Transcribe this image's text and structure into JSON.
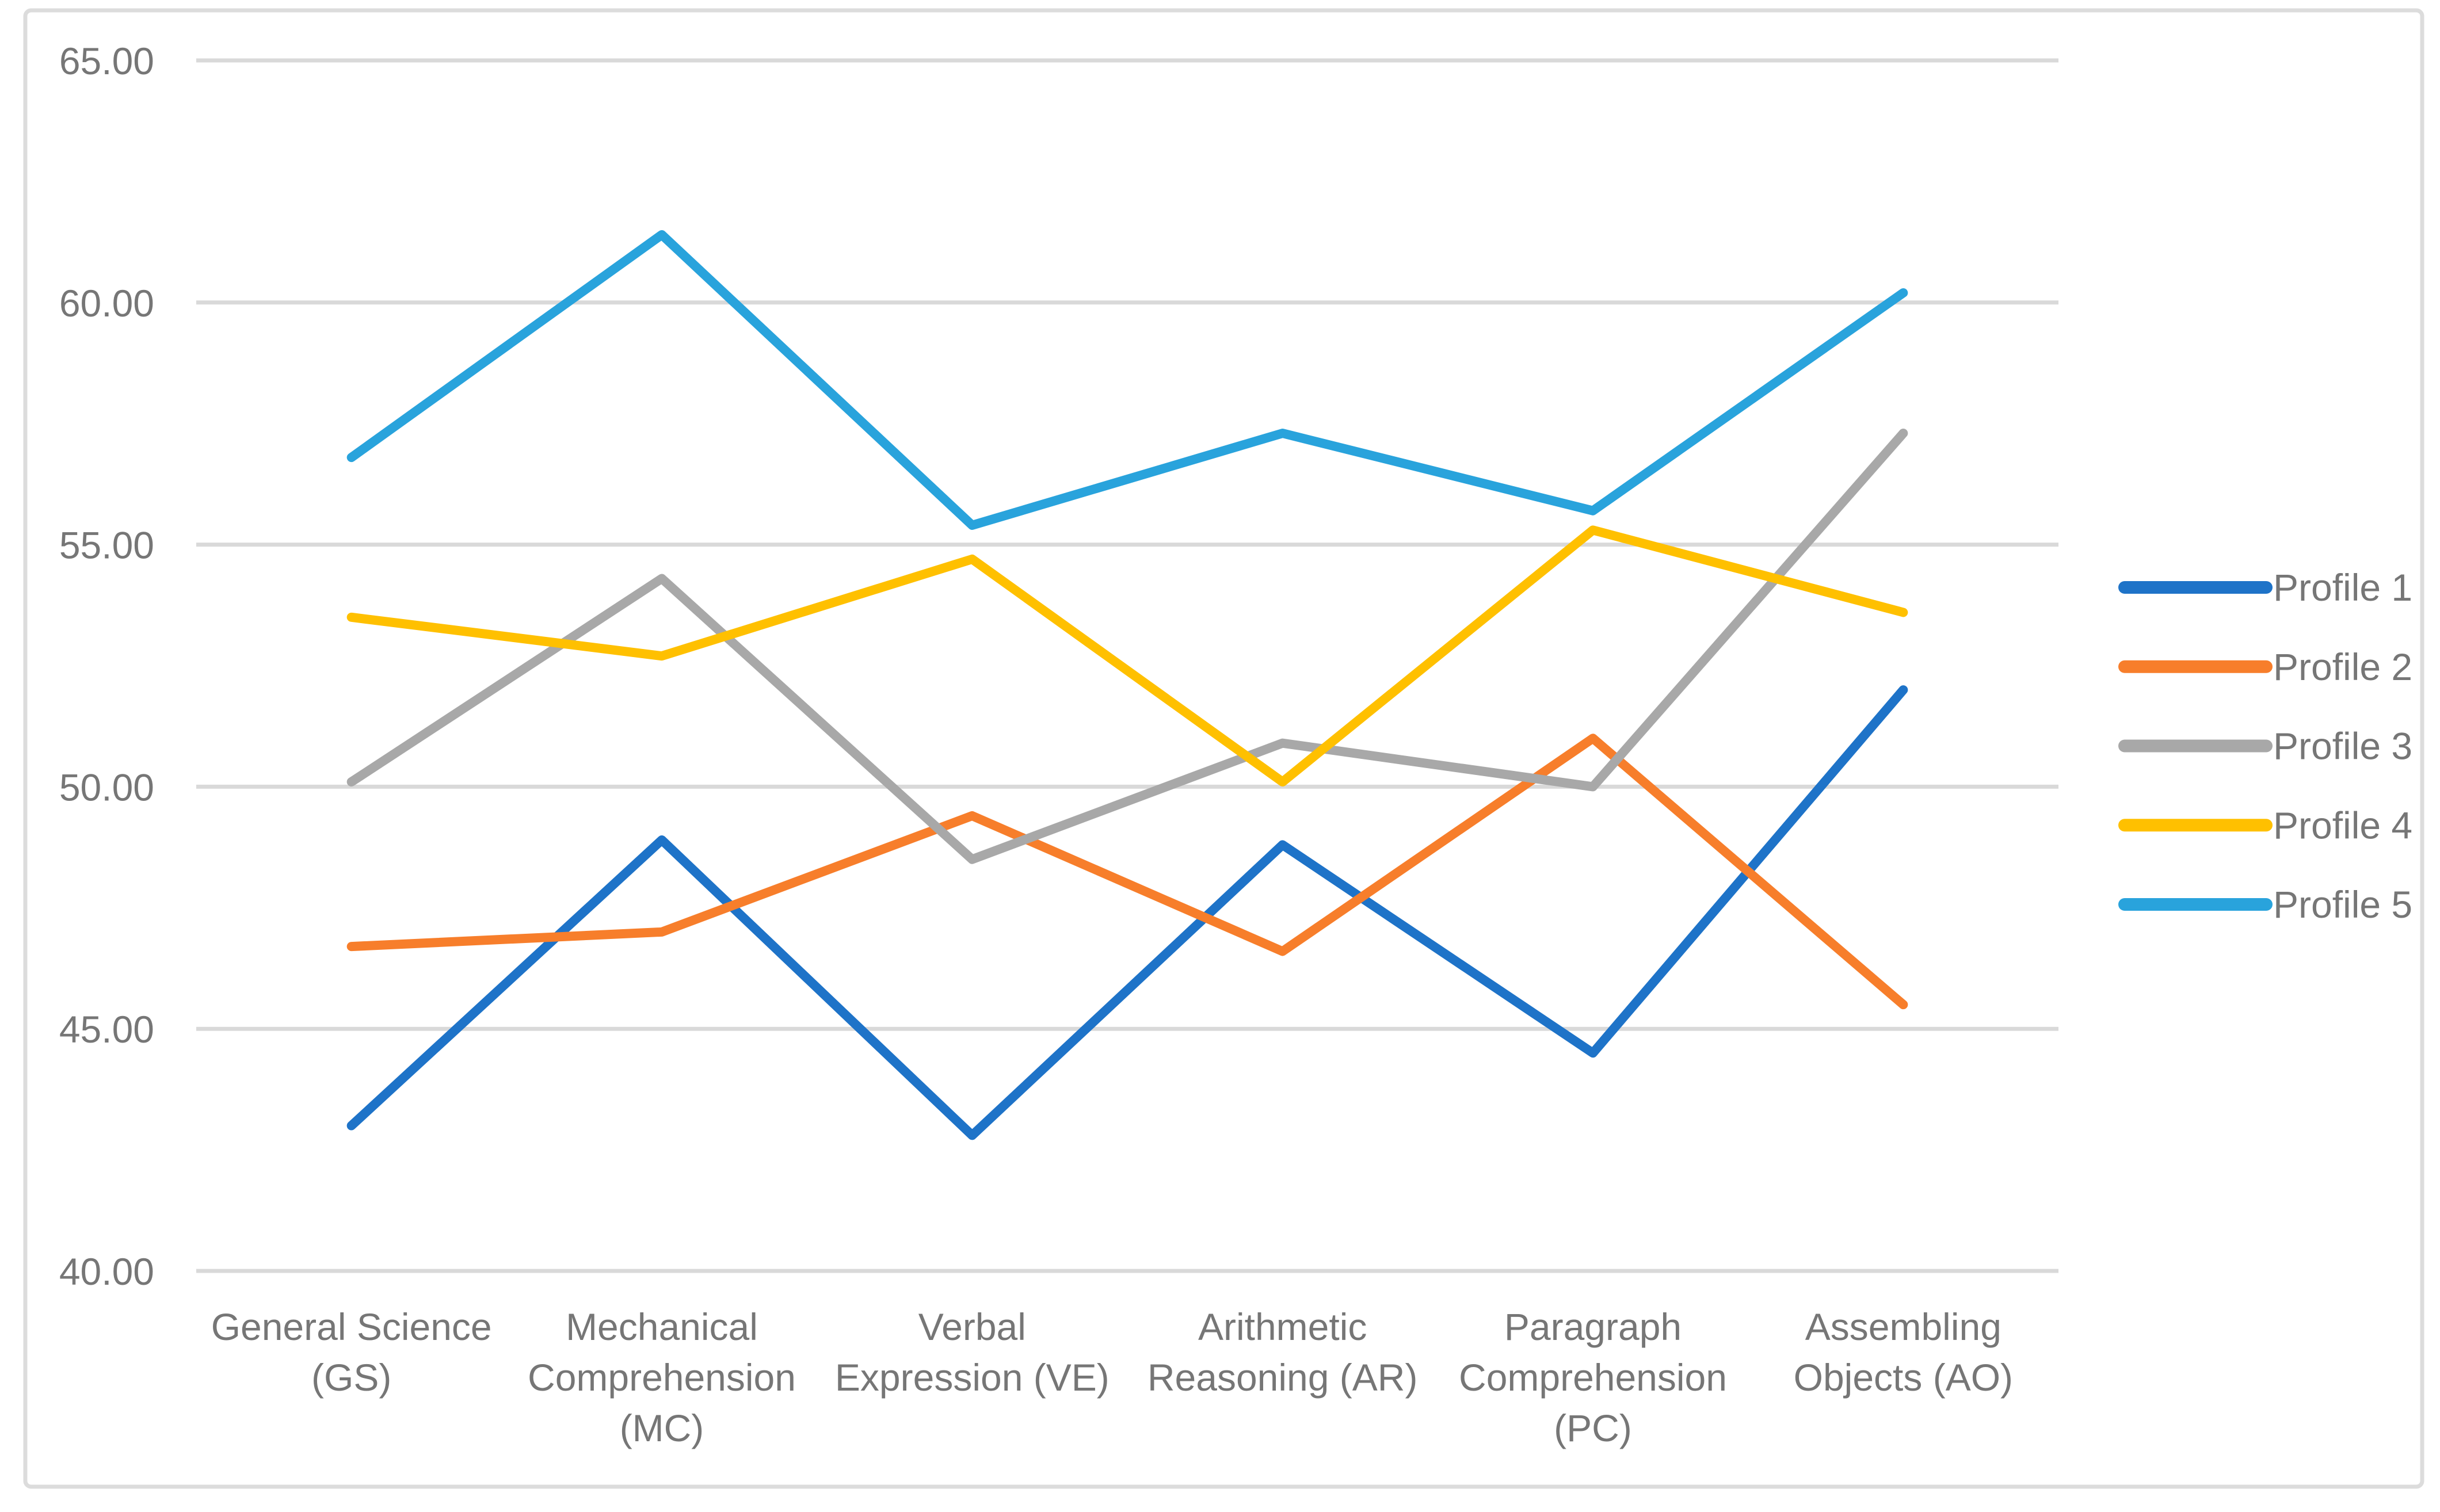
{
  "chart_data": {
    "type": "line",
    "categories": [
      "General Science (GS)",
      "Mechanical Comprehension (MC)",
      "Verbal Expression (VE)",
      "Arithmetic Reasoning (AR)",
      "Paragraph Comprehension (PC)",
      "Assembling Objects (AO)"
    ],
    "categories_wrapped": [
      [
        "General Science",
        "(GS)"
      ],
      [
        "Mechanical",
        "Comprehension",
        "(MC)"
      ],
      [
        "Verbal",
        "Expression (VE)"
      ],
      [
        "Arithmetic",
        "Reasoning (AR)"
      ],
      [
        "Paragraph",
        "Comprehension",
        "(PC)"
      ],
      [
        "Assembling",
        "Objects (AO)"
      ]
    ],
    "series": [
      {
        "name": "Profile 1",
        "color": "#1E73C8",
        "values": [
          43.0,
          48.9,
          42.8,
          48.8,
          44.5,
          52.0
        ]
      },
      {
        "name": "Profile 2",
        "color": "#F77E2B",
        "values": [
          46.7,
          47.0,
          49.4,
          46.6,
          51.0,
          45.5
        ]
      },
      {
        "name": "Profile 3",
        "color": "#A8A8A8",
        "values": [
          50.1,
          54.3,
          48.5,
          50.9,
          50.0,
          57.3
        ]
      },
      {
        "name": "Profile 4",
        "color": "#FFC000",
        "values": [
          53.5,
          52.7,
          54.7,
          50.1,
          55.3,
          53.6
        ]
      },
      {
        "name": "Profile 5",
        "color": "#29A3DC",
        "values": [
          56.8,
          61.4,
          55.4,
          57.3,
          55.7,
          60.2
        ]
      }
    ],
    "y_axis": {
      "min": 40,
      "max": 65,
      "step": 5,
      "tick_labels": [
        "65.00",
        "60.00",
        "55.00",
        "50.00",
        "45.00",
        "40.00"
      ]
    },
    "xlabel": "",
    "ylabel": "",
    "grid": true,
    "legend_position": "right",
    "legend_entries": [
      "Profile 1",
      "Profile 2",
      "Profile 3",
      "Profile 4",
      "Profile 5"
    ]
  },
  "styles": {
    "grid_color": "#D9D9D9",
    "text_color": "#767676",
    "frame_border_color": "#DCDCDC",
    "background": "#FFFFFF"
  }
}
